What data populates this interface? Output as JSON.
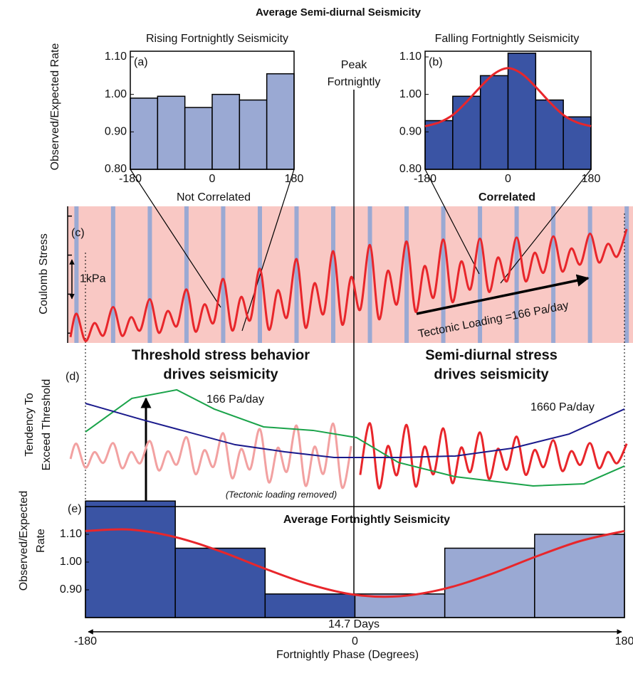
{
  "title": "Average Semi-diurnal Seismicity",
  "peak_label": [
    "Peak",
    "Fortnightly"
  ],
  "chart_data": [
    {
      "type": "histogram",
      "label": "(a)",
      "title": "Rising Fortnightly Seismicity",
      "xlabel": "Not Correlated",
      "ylabel": "Observed/Expected Rate",
      "bins": [
        -180,
        -120,
        -60,
        0,
        60,
        120,
        180
      ],
      "values": [
        0.99,
        0.995,
        0.965,
        1.0,
        0.985,
        1.055
      ],
      "color": "#9aa9d3",
      "xlim": [
        -180,
        180
      ],
      "xticks": [
        -180,
        0,
        180
      ],
      "ylim": [
        0.8,
        1.1
      ],
      "yticks": [
        {
          "value": 0.8,
          "label": "0.80"
        },
        {
          "value": 0.9,
          "label": "0.90"
        },
        {
          "value": 1.0,
          "label": "1.00"
        },
        {
          "value": 1.1,
          "label": "1.10"
        }
      ]
    },
    {
      "type": "histogram",
      "label": "(b)",
      "title": "Falling Fortnightly Seismicity",
      "xlabel": "Correlated",
      "bins": [
        -180,
        -120,
        -60,
        0,
        60,
        120,
        180
      ],
      "values": [
        0.93,
        0.995,
        1.05,
        1.11,
        0.985,
        0.94
      ],
      "color": "#3a54a4",
      "xlim": [
        -180,
        180
      ],
      "xticks": [
        -180,
        0,
        180
      ],
      "ylim": [
        0.8,
        1.1
      ],
      "yticks": [
        {
          "value": 0.8,
          "label": "0.80"
        },
        {
          "value": 0.9,
          "label": "0.90"
        },
        {
          "value": 1.0,
          "label": "1.00"
        },
        {
          "value": 1.1,
          "label": "1.10"
        }
      ],
      "fit": {
        "color": "#e8262b",
        "x": [
          -180,
          -150,
          -120,
          -90,
          -60,
          -30,
          0,
          30,
          60,
          90,
          120,
          150,
          180
        ],
        "values": [
          0.915,
          0.925,
          0.945,
          0.98,
          1.02,
          1.055,
          1.07,
          1.055,
          1.02,
          0.98,
          0.945,
          0.925,
          0.915
        ]
      }
    },
    {
      "type": "line",
      "label": "(c)",
      "ylabel": "Coulomb Stress",
      "annotation": "Tectonic Loading =166 Pa/day",
      "scale_bar": {
        "value": 1,
        "label": "1kPa"
      },
      "background": "#f9c8c4",
      "highlight_color": "#9aa9d3",
      "xlim": [
        -180,
        180
      ],
      "ylim": [
        0,
        3.5
      ],
      "yticks": [
        0.25,
        1.25,
        2.25,
        3.25
      ],
      "series": [
        {
          "color": "#e8262b",
          "x": [
            -190,
            -186,
            -180,
            -174,
            -168,
            -161.5,
            -155.5,
            -149.5,
            -143.5,
            -137,
            -131,
            -125,
            -119,
            -112.5,
            -106.5,
            -100.5,
            -94.5,
            -88,
            -82,
            -76,
            -70,
            -63.5,
            -57.5,
            -51.5,
            -45.5,
            -39,
            -33,
            -27,
            -21,
            -14.5,
            -8.5,
            -2.5,
            3.5,
            10,
            16,
            22,
            28,
            34.5,
            40.5,
            46.5,
            52.5,
            59,
            65,
            71,
            77,
            83.5,
            89.5,
            95.5,
            101.5,
            108,
            114,
            120,
            126,
            132.5,
            138.5,
            144.5,
            150.5,
            157,
            163,
            169,
            175,
            181.5
          ],
          "values": [
            0.15,
            0.75,
            0.05,
            0.51,
            0.19,
            0.92,
            0.18,
            0.66,
            0.32,
            1.12,
            0.26,
            0.82,
            0.43,
            1.37,
            0.29,
            0.99,
            0.51,
            1.64,
            0.32,
            1.18,
            0.58,
            1.9,
            0.34,
            1.35,
            0.65,
            2.15,
            0.39,
            1.53,
            0.74,
            2.35,
            0.47,
            1.69,
            0.85,
            2.51,
            0.61,
            1.85,
            0.99,
            2.6,
            0.8,
            1.97,
            1.16,
            2.65,
            1.05,
            2.09,
            1.37,
            2.67,
            1.31,
            2.19,
            1.58,
            2.7,
            1.58,
            2.31,
            1.8,
            2.73,
            1.83,
            2.42,
            2.01,
            2.8,
            2.06,
            2.54,
            2.21,
            2.92
          ]
        }
      ]
    },
    {
      "type": "line",
      "label": "(d)",
      "ylabel": [
        "Tendency To",
        "Exceed Threshold"
      ],
      "annotation": "(Tectonic loading removed)",
      "headings": [
        [
          "Threshold stress behavior",
          "drives seismicity"
        ],
        [
          "Semi-diurnal stress",
          "drives seismicity"
        ]
      ],
      "xlim": [
        -180,
        180
      ],
      "ylim": [
        0,
        10
      ],
      "series": [
        {
          "color": "#f2a1a1",
          "x": [
            -190,
            -186,
            -180,
            -174,
            -168,
            -161.5,
            -155.5,
            -149.5,
            -143.5,
            -137,
            -131,
            -125,
            -119,
            -112.5,
            -106.5,
            -100.5,
            -94.5,
            -88,
            -82,
            -76,
            -70,
            -63.5,
            -57.5,
            -51.5,
            -45.5,
            -39,
            -33,
            -27,
            -21,
            -14.5,
            -8.5,
            -2.5
          ],
          "values": [
            3.0,
            4.42,
            2.18,
            3.64,
            2.63,
            4.48,
            2.12,
            3.65,
            2.59,
            4.68,
            1.92,
            3.71,
            2.47,
            5.03,
            1.57,
            3.82,
            2.26,
            5.41,
            1.19,
            3.93,
            2.03,
            5.8,
            0.8,
            4.05,
            1.8,
            6.12,
            0.48,
            4.15,
            1.61,
            6.3,
            0.3,
            4.2
          ]
        },
        {
          "color": "#e8262b",
          "x": [
            3.5,
            10,
            16,
            22,
            28,
            34.5,
            40.5,
            46.5,
            52.5,
            59,
            65,
            71,
            77,
            83.5,
            89.5,
            95.5,
            101.5,
            108,
            114,
            120,
            126,
            132.5,
            138.5,
            144.5,
            150.5,
            157,
            163,
            169,
            175,
            181.5
          ],
          "values": [
            1.5,
            6.34,
            0.26,
            4.21,
            1.48,
            6.18,
            0.42,
            4.16,
            1.57,
            5.86,
            0.74,
            4.07,
            1.76,
            5.48,
            1.12,
            3.95,
            1.99,
            5.09,
            1.51,
            3.84,
            2.23,
            4.74,
            1.86,
            3.73,
            2.44,
            4.48,
            2.12,
            3.65,
            2.59,
            4.42
          ]
        },
        {
          "name": "166 Pa/day",
          "color": "#1aa34a",
          "x": [
            -180,
            -149,
            -119,
            -94,
            -61,
            -28,
            1,
            29,
            67,
            119,
            153,
            180
          ],
          "values": [
            5.53,
            8.67,
            9.47,
            7.67,
            6.0,
            5.67,
            5.0,
            2.67,
            1.33,
            0.47,
            0.67,
            2.33
          ]
        },
        {
          "name": "1660 Pa/day",
          "color": "#1a1a8c",
          "x": [
            -180,
            -142,
            -80,
            -47,
            -14,
            29,
            67,
            105,
            143,
            180
          ],
          "values": [
            8.2,
            6.67,
            4.33,
            3.67,
            3.13,
            3.13,
            3.27,
            4.0,
            5.33,
            7.67
          ]
        }
      ]
    },
    {
      "type": "histogram",
      "label": "(e)",
      "title": "Average Fortnightly Seismicity",
      "ylabel": [
        "Observed/Expected",
        "Rate"
      ],
      "xlabel": "Fortnightly Phase (Degrees)",
      "span_label": "14.7 Days",
      "bins": [
        -180,
        -120,
        -60,
        0,
        60,
        120,
        180
      ],
      "values": [
        1.22,
        1.05,
        0.885,
        0.885,
        1.05,
        1.1
      ],
      "colors": [
        "#3a54a4",
        "#3a54a4",
        "#3a54a4",
        "#9aa9d3",
        "#9aa9d3",
        "#9aa9d3"
      ],
      "xlim": [
        -180,
        180
      ],
      "xticks": [
        -180,
        0,
        180
      ],
      "ylim": [
        0.8,
        1.2
      ],
      "yticks": [
        {
          "value": 0.9,
          "label": "0.90"
        },
        {
          "value": 1.0,
          "label": "1.00"
        },
        {
          "value": 1.1,
          "label": "1.10"
        }
      ],
      "fit": {
        "color": "#e8262b",
        "x": [
          -180,
          -150,
          -120,
          -90,
          -60,
          -30,
          0,
          30,
          60,
          90,
          120,
          150,
          180
        ],
        "values": [
          1.112,
          1.117,
          1.09,
          1.039,
          0.976,
          0.919,
          0.882,
          0.877,
          0.904,
          0.955,
          1.018,
          1.075,
          1.112
        ]
      }
    }
  ]
}
